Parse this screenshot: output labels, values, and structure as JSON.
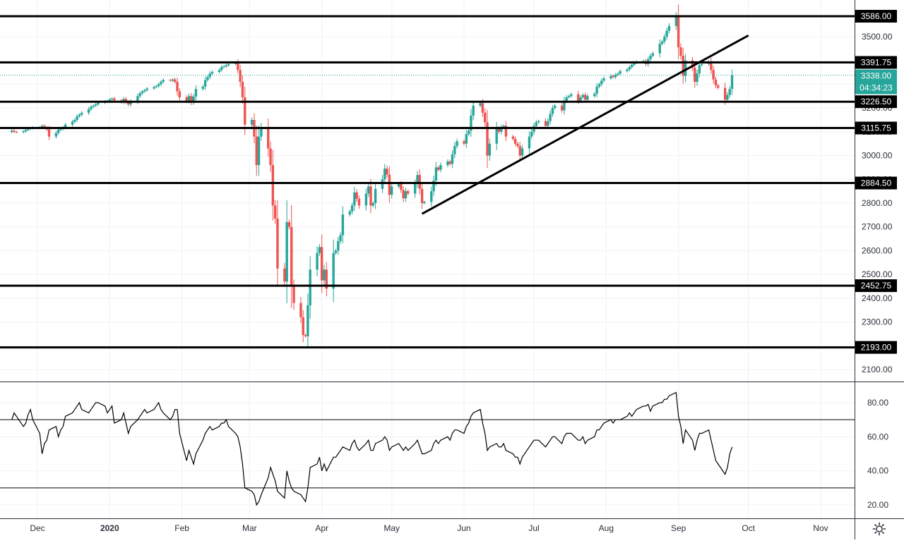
{
  "colors": {
    "up": "#26a69a",
    "down": "#ef5350",
    "grid": "#eef1f6",
    "axis_text": "#2a2e39",
    "level_line": "#000000",
    "label_bg": "#000000",
    "label_text": "#ffffff",
    "price_label_bg": "#26a69a",
    "rsi_line": "#000000"
  },
  "chart_data": [
    {
      "type": "candlestick",
      "title": "",
      "ylim": [
        2050,
        3625
      ],
      "y_ticks": [
        "2100.00",
        "2200.00",
        "2300.00",
        "2400.00",
        "2500.00",
        "2600.00",
        "2700.00",
        "2800.00",
        "2900.00",
        "3000.00",
        "3100.00",
        "3200.00",
        "3300.00",
        "3400.00",
        "3500.00"
      ],
      "x_ticks": [
        "Dec",
        "2020",
        "Feb",
        "Mar",
        "Apr",
        "May",
        "Jun",
        "Jul",
        "Aug",
        "Sep",
        "Oct",
        "Nov"
      ],
      "horizontal_levels": [
        {
          "value": 3586.0,
          "label": "3586.00"
        },
        {
          "value": 3391.75,
          "label": "3391.75"
        },
        {
          "value": 3226.5,
          "label": "3226.50"
        },
        {
          "value": 3115.75,
          "label": "3115.75"
        },
        {
          "value": 2884.5,
          "label": "2884.50"
        },
        {
          "value": 2452.75,
          "label": "2452.75"
        },
        {
          "value": 2193.0,
          "label": "2193.00"
        }
      ],
      "current_price": {
        "value": 3338.0,
        "label": "3338.00",
        "countdown": "04:34:23"
      },
      "trendline": {
        "from": {
          "date": "2020-05-14",
          "price": 2755
        },
        "to": {
          "date": "2020-10-01",
          "price": 3505
        }
      },
      "start_date": "2019-11-20",
      "close": [
        3105,
        3100,
        3098,
        3102,
        3108,
        3112,
        3115,
        3118,
        3120,
        3125,
        3118,
        3110,
        3080,
        3095,
        3108,
        3112,
        3118,
        3130,
        3142,
        3150,
        3165,
        3172,
        3180,
        3195,
        3205,
        3210,
        3215,
        3222,
        3228,
        3230,
        3236,
        3240,
        3232,
        3225,
        3238,
        3225,
        3215,
        3228,
        3250,
        3262,
        3270,
        3275,
        3282,
        3288,
        3292,
        3300,
        3310,
        3318,
        3315,
        3320,
        3310,
        3270,
        3245,
        3230,
        3250,
        3225,
        3248,
        3280,
        3290,
        3318,
        3330,
        3345,
        3352,
        3360,
        3372,
        3375,
        3380,
        3385,
        3390,
        3360,
        3310,
        3245,
        3130,
        3150,
        3080,
        2960,
        3080,
        3120,
        3030,
        2960,
        2790,
        2735,
        2525,
        2470,
        2720,
        2700,
        2450,
        2380,
        2320,
        2245,
        2240,
        2370,
        2520,
        2590,
        2615,
        2475,
        2520,
        2440,
        2590,
        2600,
        2640,
        2665,
        2752,
        2765,
        2790,
        2845,
        2818,
        2790,
        2840,
        2870,
        2790,
        2800,
        2860,
        2900,
        2945,
        2920,
        2835,
        2870,
        2880,
        2855,
        2820,
        2850,
        2840,
        2880,
        2918,
        2860,
        2800,
        2805,
        2850,
        2895,
        2950,
        2940,
        2960,
        2975,
        2965,
        3005,
        3040,
        3060,
        3050,
        3090,
        3105,
        3168,
        3210,
        3220,
        3180,
        3140,
        3000,
        3050,
        3115,
        3100,
        3120,
        3125,
        3080,
        3070,
        3050,
        3040,
        3000,
        3030,
        3080,
        3100,
        3125,
        3140,
        3145,
        3125,
        3145,
        3175,
        3200,
        3210,
        3190,
        3230,
        3245,
        3250,
        3258,
        3230,
        3245,
        3255,
        3235,
        3250,
        3260,
        3290,
        3300,
        3315,
        3325,
        3335,
        3330,
        3340,
        3345,
        3355,
        3362,
        3372,
        3382,
        3390,
        3395,
        3398,
        3385,
        3405,
        3420,
        3430,
        3470,
        3480,
        3500,
        3525,
        3545,
        3585,
        3455,
        3420,
        3335,
        3400,
        3370,
        3310,
        3345,
        3380,
        3385,
        3395,
        3360,
        3320,
        3295,
        3285,
        3235,
        3255,
        3280,
        3338
      ],
      "annotations": []
    },
    {
      "type": "line",
      "title": "RSI",
      "ylim": [
        12,
        90
      ],
      "y_ticks": [
        "20.00",
        "40.00",
        "60.00",
        "80.00"
      ],
      "reference_lines": [
        70,
        30
      ],
      "values": [
        70,
        74,
        72,
        66,
        68,
        73,
        76,
        70,
        62,
        50,
        56,
        58,
        64,
        66,
        60,
        64,
        66,
        72,
        74,
        76,
        78,
        80,
        76,
        74,
        76,
        78,
        80,
        80,
        78,
        74,
        76,
        78,
        68,
        70,
        74,
        68,
        62,
        66,
        70,
        72,
        74,
        76,
        74,
        76,
        78,
        80,
        76,
        74,
        70,
        72,
        76,
        76,
        62,
        46,
        52,
        48,
        44,
        50,
        58,
        62,
        64,
        66,
        64,
        66,
        68,
        68,
        70,
        66,
        62,
        60,
        54,
        44,
        30,
        28,
        26,
        20,
        22,
        26,
        36,
        42,
        38,
        34,
        28,
        24,
        40,
        34,
        30,
        28,
        26,
        24,
        22,
        30,
        42,
        44,
        48,
        40,
        44,
        40,
        48,
        48,
        50,
        52,
        54,
        52,
        56,
        58,
        54,
        52,
        56,
        58,
        52,
        52,
        56,
        58,
        60,
        58,
        52,
        54,
        56,
        54,
        52,
        54,
        52,
        56,
        58,
        54,
        50,
        50,
        52,
        56,
        58,
        56,
        58,
        60,
        58,
        62,
        64,
        64,
        62,
        66,
        68,
        72,
        74,
        76,
        68,
        62,
        52,
        54,
        56,
        54,
        54,
        56,
        52,
        50,
        48,
        48,
        44,
        48,
        54,
        56,
        58,
        58,
        58,
        54,
        56,
        58,
        60,
        60,
        56,
        60,
        62,
        62,
        62,
        58,
        58,
        60,
        56,
        58,
        60,
        64,
        64,
        66,
        68,
        70,
        68,
        70,
        70,
        70,
        72,
        74,
        72,
        74,
        76,
        78,
        78,
        79,
        75,
        78,
        80,
        80,
        82,
        82,
        84,
        86,
        72,
        66,
        56,
        64,
        58,
        52,
        58,
        62,
        62,
        64,
        58,
        52,
        46,
        44,
        38,
        42,
        50,
        54
      ]
    }
  ]
}
